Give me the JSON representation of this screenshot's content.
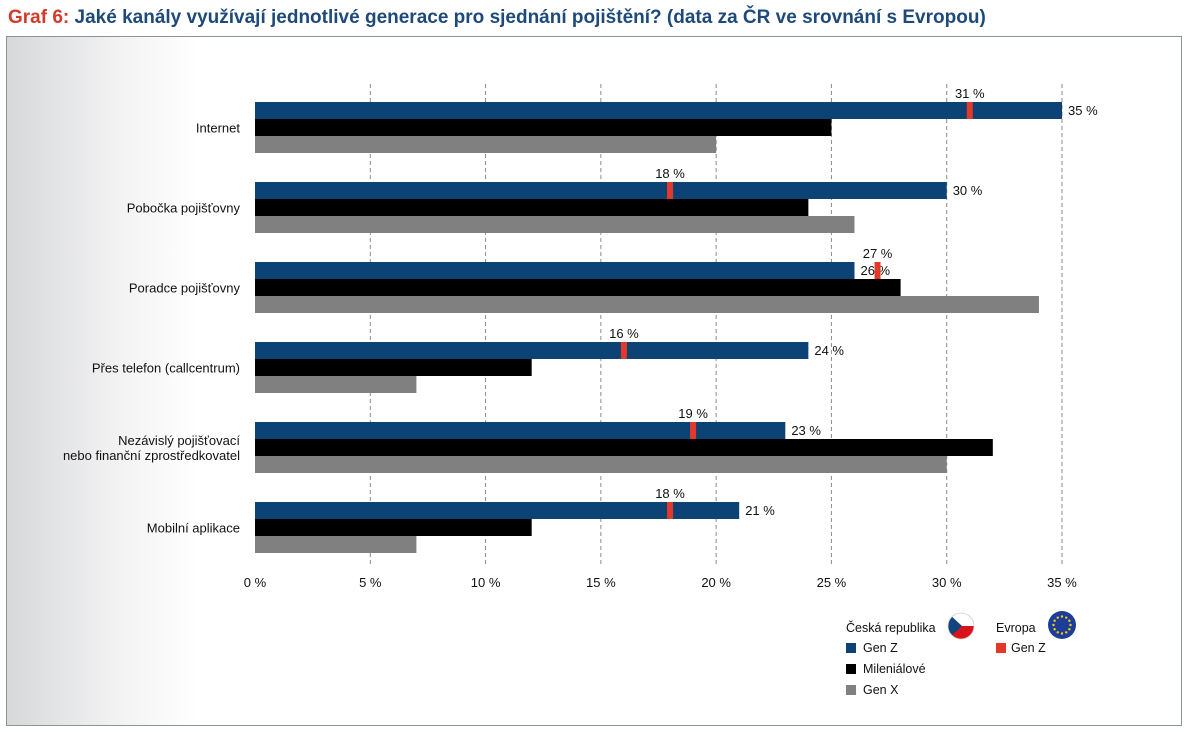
{
  "title_prefix": "Graf 6:",
  "title_text": "Jaké kanály využívají jednotlivé generace pro sjednání pojištění? (data za ČR ve srovnání s Evropou)",
  "colors": {
    "genz": "#0d4274",
    "mill": "#000000",
    "genx": "#808080",
    "europe": "#e2392a",
    "grid": "#8a8a8a",
    "title": "#1e4a7a",
    "prefix": "#d33a2a"
  },
  "chart_data": {
    "type": "bar",
    "orientation": "horizontal",
    "categories": [
      [
        "Internet"
      ],
      [
        "Pobočka pojišťovny"
      ],
      [
        "Poradce pojišťovny"
      ],
      [
        "Přes telefon (callcentrum)"
      ],
      [
        "Nezávislý pojišťovací",
        "nebo finanční zprostředkovatel"
      ],
      [
        "Mobilní aplikace"
      ]
    ],
    "series": [
      {
        "name": "Gen Z",
        "group": "Česká republika",
        "values": [
          35,
          30,
          26,
          24,
          23,
          21
        ],
        "labels": [
          "35 %",
          "30 %",
          "26 %",
          "24 %",
          "23 %",
          "21 %"
        ]
      },
      {
        "name": "Mileniálové",
        "group": "Česká republika",
        "values": [
          25,
          24,
          28,
          12,
          32,
          12
        ]
      },
      {
        "name": "Gen X",
        "group": "Česká republika",
        "values": [
          20,
          26,
          34,
          7,
          30,
          7
        ]
      }
    ],
    "europe_markers": {
      "name": "Gen Z",
      "group": "Evropa",
      "values": [
        31,
        18,
        27,
        16,
        19,
        18
      ],
      "labels": [
        "31 %",
        "18 %",
        "27 %",
        "16 %",
        "19 %",
        "18 %"
      ]
    },
    "xlim": [
      0,
      35
    ],
    "xticks": [
      0,
      5,
      10,
      15,
      20,
      25,
      30,
      35
    ],
    "xtick_labels": [
      "0 %",
      "5 %",
      "10 %",
      "15 %",
      "20 %",
      "25 %",
      "30 %",
      "35 %"
    ],
    "grid": "vertical dashed",
    "legend": {
      "placement": "bottom-right",
      "cz_title": "Česká republika",
      "eu_title": "Evropa",
      "cz_items": [
        "Gen Z",
        "Mileniálové",
        "Gen X"
      ],
      "eu_items": [
        "Gen Z"
      ]
    }
  }
}
